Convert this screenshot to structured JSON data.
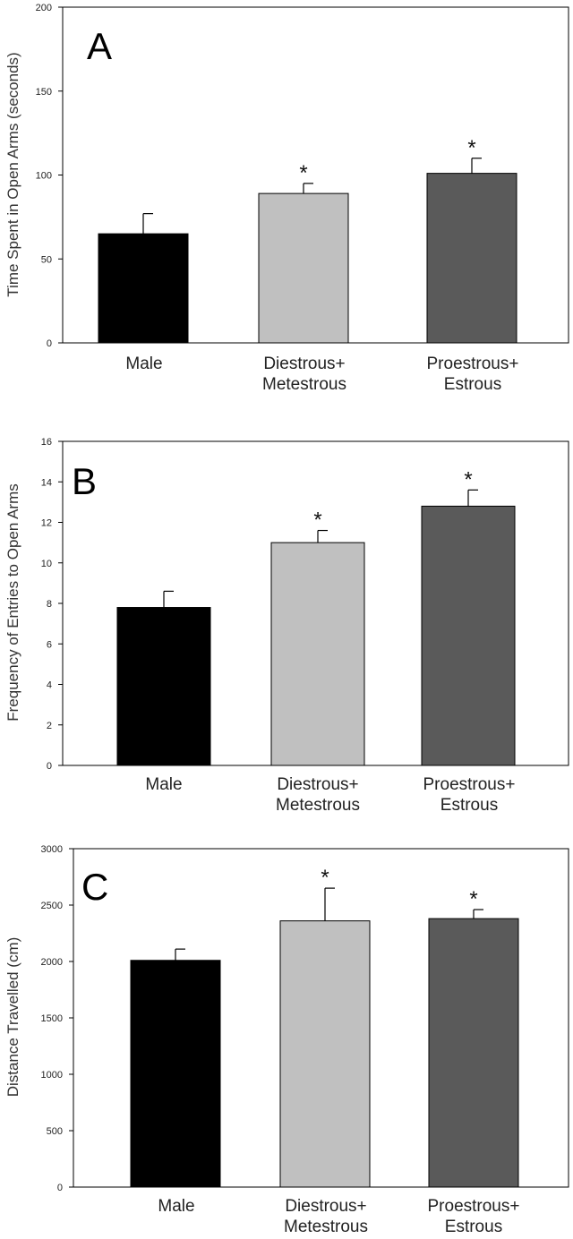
{
  "chart_data": [
    {
      "type": "bar",
      "panel_label": "A",
      "ylabel": "Time Spent in Open Arms (seconds)",
      "ylim": [
        0,
        200
      ],
      "yticks": [
        "0",
        "50",
        "100",
        "150",
        "200"
      ],
      "categories": [
        [
          "Male"
        ],
        [
          "Diestrous+",
          "Metestrous"
        ],
        [
          "Proestrous+",
          "Estrous"
        ]
      ],
      "values": [
        65,
        89,
        101
      ],
      "errors": [
        12,
        6,
        9
      ],
      "significance": [
        "",
        "*",
        "*"
      ],
      "colors": [
        "#000000",
        "#c0c0c0",
        "#5a5a5a"
      ]
    },
    {
      "type": "bar",
      "panel_label": "B",
      "ylabel": "Frequency of Entries to Open Arms",
      "ylim": [
        0,
        16
      ],
      "yticks": [
        "0",
        "2",
        "4",
        "6",
        "8",
        "10",
        "12",
        "14",
        "16"
      ],
      "categories": [
        [
          "Male"
        ],
        [
          "Diestrous+",
          "Metestrous"
        ],
        [
          "Proestrous+",
          "Estrous"
        ]
      ],
      "values": [
        7.8,
        11.0,
        12.8
      ],
      "errors": [
        0.8,
        0.6,
        0.8
      ],
      "significance": [
        "",
        "*",
        "*"
      ],
      "colors": [
        "#000000",
        "#c0c0c0",
        "#5a5a5a"
      ]
    },
    {
      "type": "bar",
      "panel_label": "C",
      "ylabel": "Distance Travelled (cm)",
      "ylim": [
        0,
        3000
      ],
      "yticks": [
        "0",
        "500",
        "1000",
        "1500",
        "2000",
        "2500",
        "3000"
      ],
      "categories": [
        [
          "Male"
        ],
        [
          "Diestrous+",
          "Metestrous"
        ],
        [
          "Proestrous+",
          "Estrous"
        ]
      ],
      "values": [
        2010,
        2360,
        2380
      ],
      "errors": [
        100,
        290,
        80
      ],
      "significance": [
        "",
        "*",
        "*"
      ],
      "colors": [
        "#000000",
        "#c0c0c0",
        "#5a5a5a"
      ]
    }
  ]
}
